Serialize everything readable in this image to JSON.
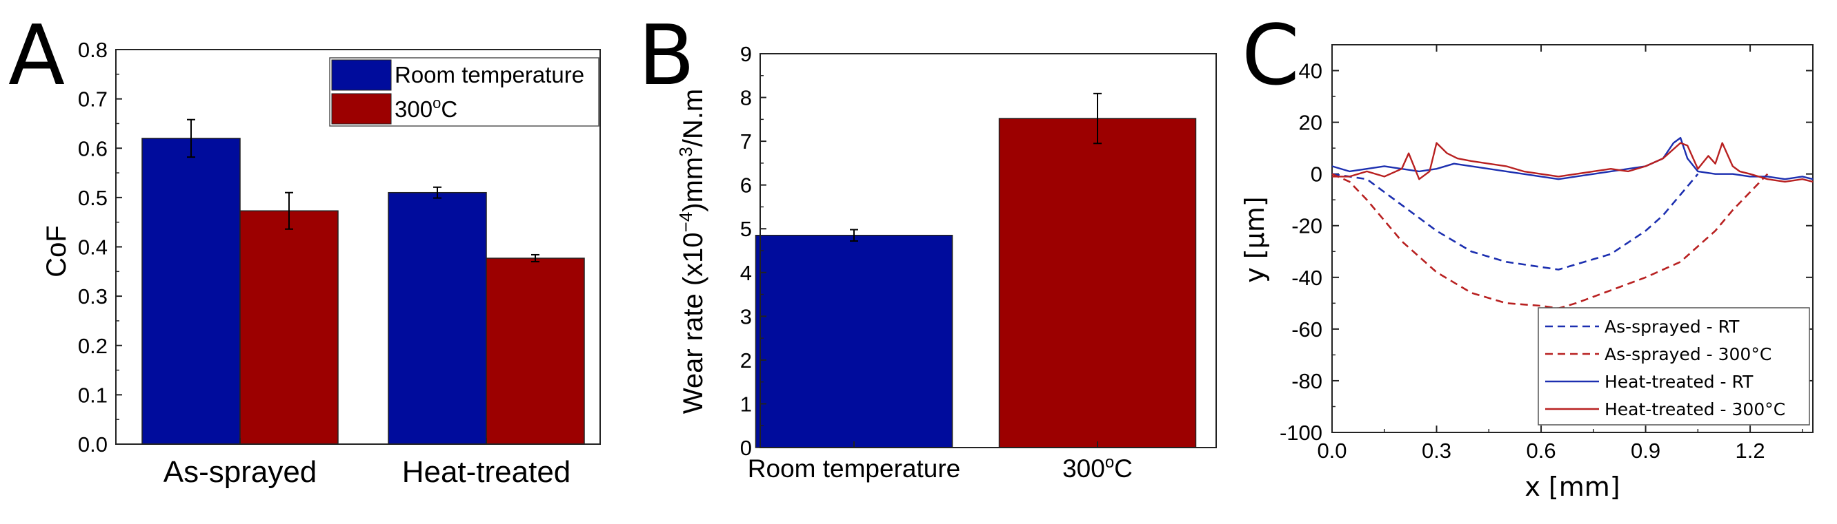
{
  "panels": {
    "A": {
      "letter": "A"
    },
    "B": {
      "letter": "B"
    },
    "C": {
      "letter": "C"
    }
  },
  "chart_data": [
    {
      "id": "A",
      "type": "bar",
      "ylabel": "CoF",
      "xlabel": "",
      "ylim": [
        0,
        0.8
      ],
      "yticks": [
        "0.0",
        "0.1",
        "0.2",
        "0.3",
        "0.4",
        "0.5",
        "0.6",
        "0.7",
        "0.8"
      ],
      "categories": [
        "As-sprayed",
        "Heat-treated"
      ],
      "series": [
        {
          "name": "Room temperature",
          "color": "#000c9c",
          "values": [
            0.62,
            0.51
          ],
          "errors": [
            0.038,
            0.011
          ]
        },
        {
          "name": "300",
          "name_sup": "o",
          "name_suffix": "C",
          "color": "#9c0000",
          "values": [
            0.473,
            0.377
          ],
          "errors": [
            0.037,
            0.007
          ]
        }
      ],
      "legend_position": "top-right"
    },
    {
      "id": "B",
      "type": "bar",
      "ylabel_parts": [
        "Wear rate (x10",
        "−4",
        ")mm",
        "3",
        "/N.m"
      ],
      "ylim": [
        0,
        9
      ],
      "yticks": [
        "0",
        "1",
        "2",
        "3",
        "4",
        "5",
        "6",
        "7",
        "8",
        "9"
      ],
      "categories": [
        {
          "text": "Room temperature",
          "sup": "",
          "suffix": ""
        },
        {
          "text": "300",
          "sup": "o",
          "suffix": "C"
        }
      ],
      "values": [
        4.85,
        7.52
      ],
      "errors": [
        0.13,
        0.57
      ],
      "colors": [
        "#000c9c",
        "#9c0000"
      ]
    },
    {
      "id": "C",
      "type": "line",
      "xlabel": "x [mm]",
      "ylabel": "y [μm]",
      "xlim": [
        0.0,
        1.38
      ],
      "ylim": [
        -100,
        50
      ],
      "xticks": [
        "0.0",
        "0.3",
        "0.6",
        "0.9",
        "1.2"
      ],
      "yticks": [
        "40",
        "20",
        "0",
        "-20",
        "-40",
        "-60",
        "-80",
        "-100"
      ],
      "legend_position": "bottom-right",
      "series": [
        {
          "name": "As-sprayed - RT",
          "color": "#1c2fb0",
          "dash": true,
          "x": [
            0.0,
            0.1,
            0.2,
            0.3,
            0.4,
            0.5,
            0.6,
            0.65,
            0.7,
            0.8,
            0.9,
            0.95,
            1.0,
            1.05
          ],
          "y": [
            0,
            -2,
            -12,
            -22,
            -30,
            -34,
            -36,
            -37,
            -35,
            -31,
            -22,
            -16,
            -8,
            0
          ]
        },
        {
          "name": "As-sprayed - 300°C",
          "color": "#b82020",
          "dash": true,
          "x": [
            0.0,
            0.05,
            0.1,
            0.15,
            0.2,
            0.3,
            0.4,
            0.5,
            0.6,
            0.65,
            0.7,
            0.8,
            0.9,
            1.0,
            1.1,
            1.15,
            1.2,
            1.25
          ],
          "y": [
            0,
            -3,
            -10,
            -18,
            -26,
            -38,
            -46,
            -50,
            -51,
            -52,
            -50,
            -45,
            -40,
            -34,
            -22,
            -14,
            -7,
            0
          ]
        },
        {
          "name": "Heat-treated - RT",
          "color": "#1c2fb0",
          "dash": false,
          "x": [
            0.0,
            0.05,
            0.1,
            0.15,
            0.2,
            0.25,
            0.3,
            0.35,
            0.4,
            0.45,
            0.5,
            0.55,
            0.6,
            0.65,
            0.7,
            0.75,
            0.8,
            0.85,
            0.9,
            0.95,
            0.98,
            1.0,
            1.02,
            1.05,
            1.1,
            1.15,
            1.2,
            1.25,
            1.3,
            1.35,
            1.38
          ],
          "y": [
            3,
            1,
            2,
            3,
            2,
            1,
            2,
            4,
            3,
            2,
            1,
            0,
            -1,
            -2,
            -1,
            0,
            1,
            2,
            3,
            6,
            12,
            14,
            6,
            1,
            0,
            0,
            -1,
            -1,
            -2,
            -1,
            -2
          ]
        },
        {
          "name": "Heat-treated - 300°C",
          "color": "#b82020",
          "dash": false,
          "x": [
            0.0,
            0.05,
            0.1,
            0.15,
            0.2,
            0.22,
            0.25,
            0.28,
            0.3,
            0.33,
            0.36,
            0.4,
            0.45,
            0.5,
            0.55,
            0.6,
            0.65,
            0.7,
            0.75,
            0.8,
            0.85,
            0.9,
            0.95,
            1.0,
            1.02,
            1.05,
            1.08,
            1.1,
            1.12,
            1.15,
            1.17,
            1.2,
            1.25,
            1.3,
            1.35,
            1.38
          ],
          "y": [
            -1,
            -1,
            1,
            -1,
            2,
            8,
            -2,
            1,
            12,
            8,
            6,
            5,
            4,
            3,
            1,
            0,
            -1,
            0,
            1,
            2,
            1,
            3,
            6,
            12,
            11,
            2,
            7,
            4,
            12,
            3,
            1,
            0,
            -2,
            -3,
            -2,
            -3
          ]
        }
      ]
    }
  ]
}
